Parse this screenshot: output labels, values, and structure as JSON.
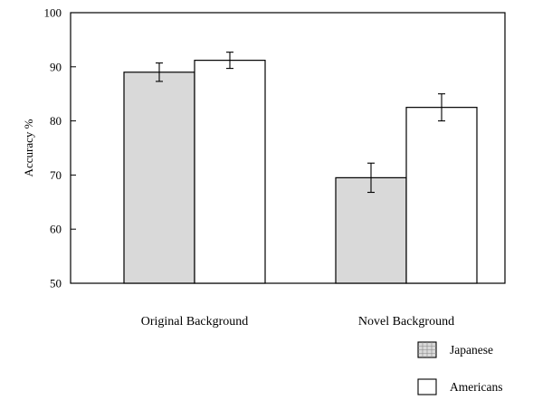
{
  "chart_data": {
    "type": "bar",
    "title": "",
    "xlabel": "",
    "ylabel": "Accuracy %",
    "categories": [
      "Original Background",
      "Novel Background"
    ],
    "series": [
      {
        "name": "Japanese",
        "values": [
          89,
          69.5
        ],
        "errors": [
          1.7,
          2.7
        ],
        "color": "#d9d9d9"
      },
      {
        "name": "Americans",
        "values": [
          91.2,
          82.5
        ],
        "errors": [
          1.5,
          2.5
        ],
        "color": "#ffffff"
      }
    ],
    "ylim": [
      50,
      100
    ],
    "yticks": [
      50,
      60,
      70,
      80,
      90,
      100
    ],
    "grid": false,
    "legend_position": "bottom-right"
  }
}
